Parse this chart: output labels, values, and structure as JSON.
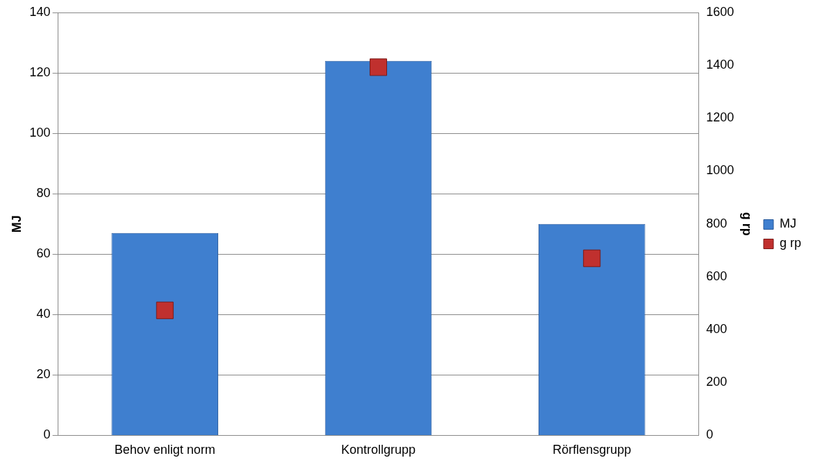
{
  "chart_data": {
    "type": "bar",
    "categories": [
      "Behov enligt norm",
      "Kontrollgrupp",
      "Rörflensgrupp"
    ],
    "series": [
      {
        "name": "MJ",
        "color": "#3f7fcf",
        "values": [
          67,
          124,
          70
        ]
      },
      {
        "name": "g rp",
        "type": "scatter",
        "axis": "y2",
        "color": "#c0302e",
        "marker": "square",
        "values": [
          473,
          1393,
          670
        ]
      }
    ],
    "ylabel": "MJ",
    "y2label": "g rp",
    "ylim": [
      0,
      140
    ],
    "yticks": [
      0,
      20,
      40,
      60,
      80,
      100,
      120,
      140
    ],
    "y2lim": [
      0,
      1600
    ],
    "y2ticks": [
      0,
      200,
      400,
      600,
      800,
      1000,
      1200,
      1400,
      1600
    ],
    "grid": "y",
    "legend": "right"
  }
}
